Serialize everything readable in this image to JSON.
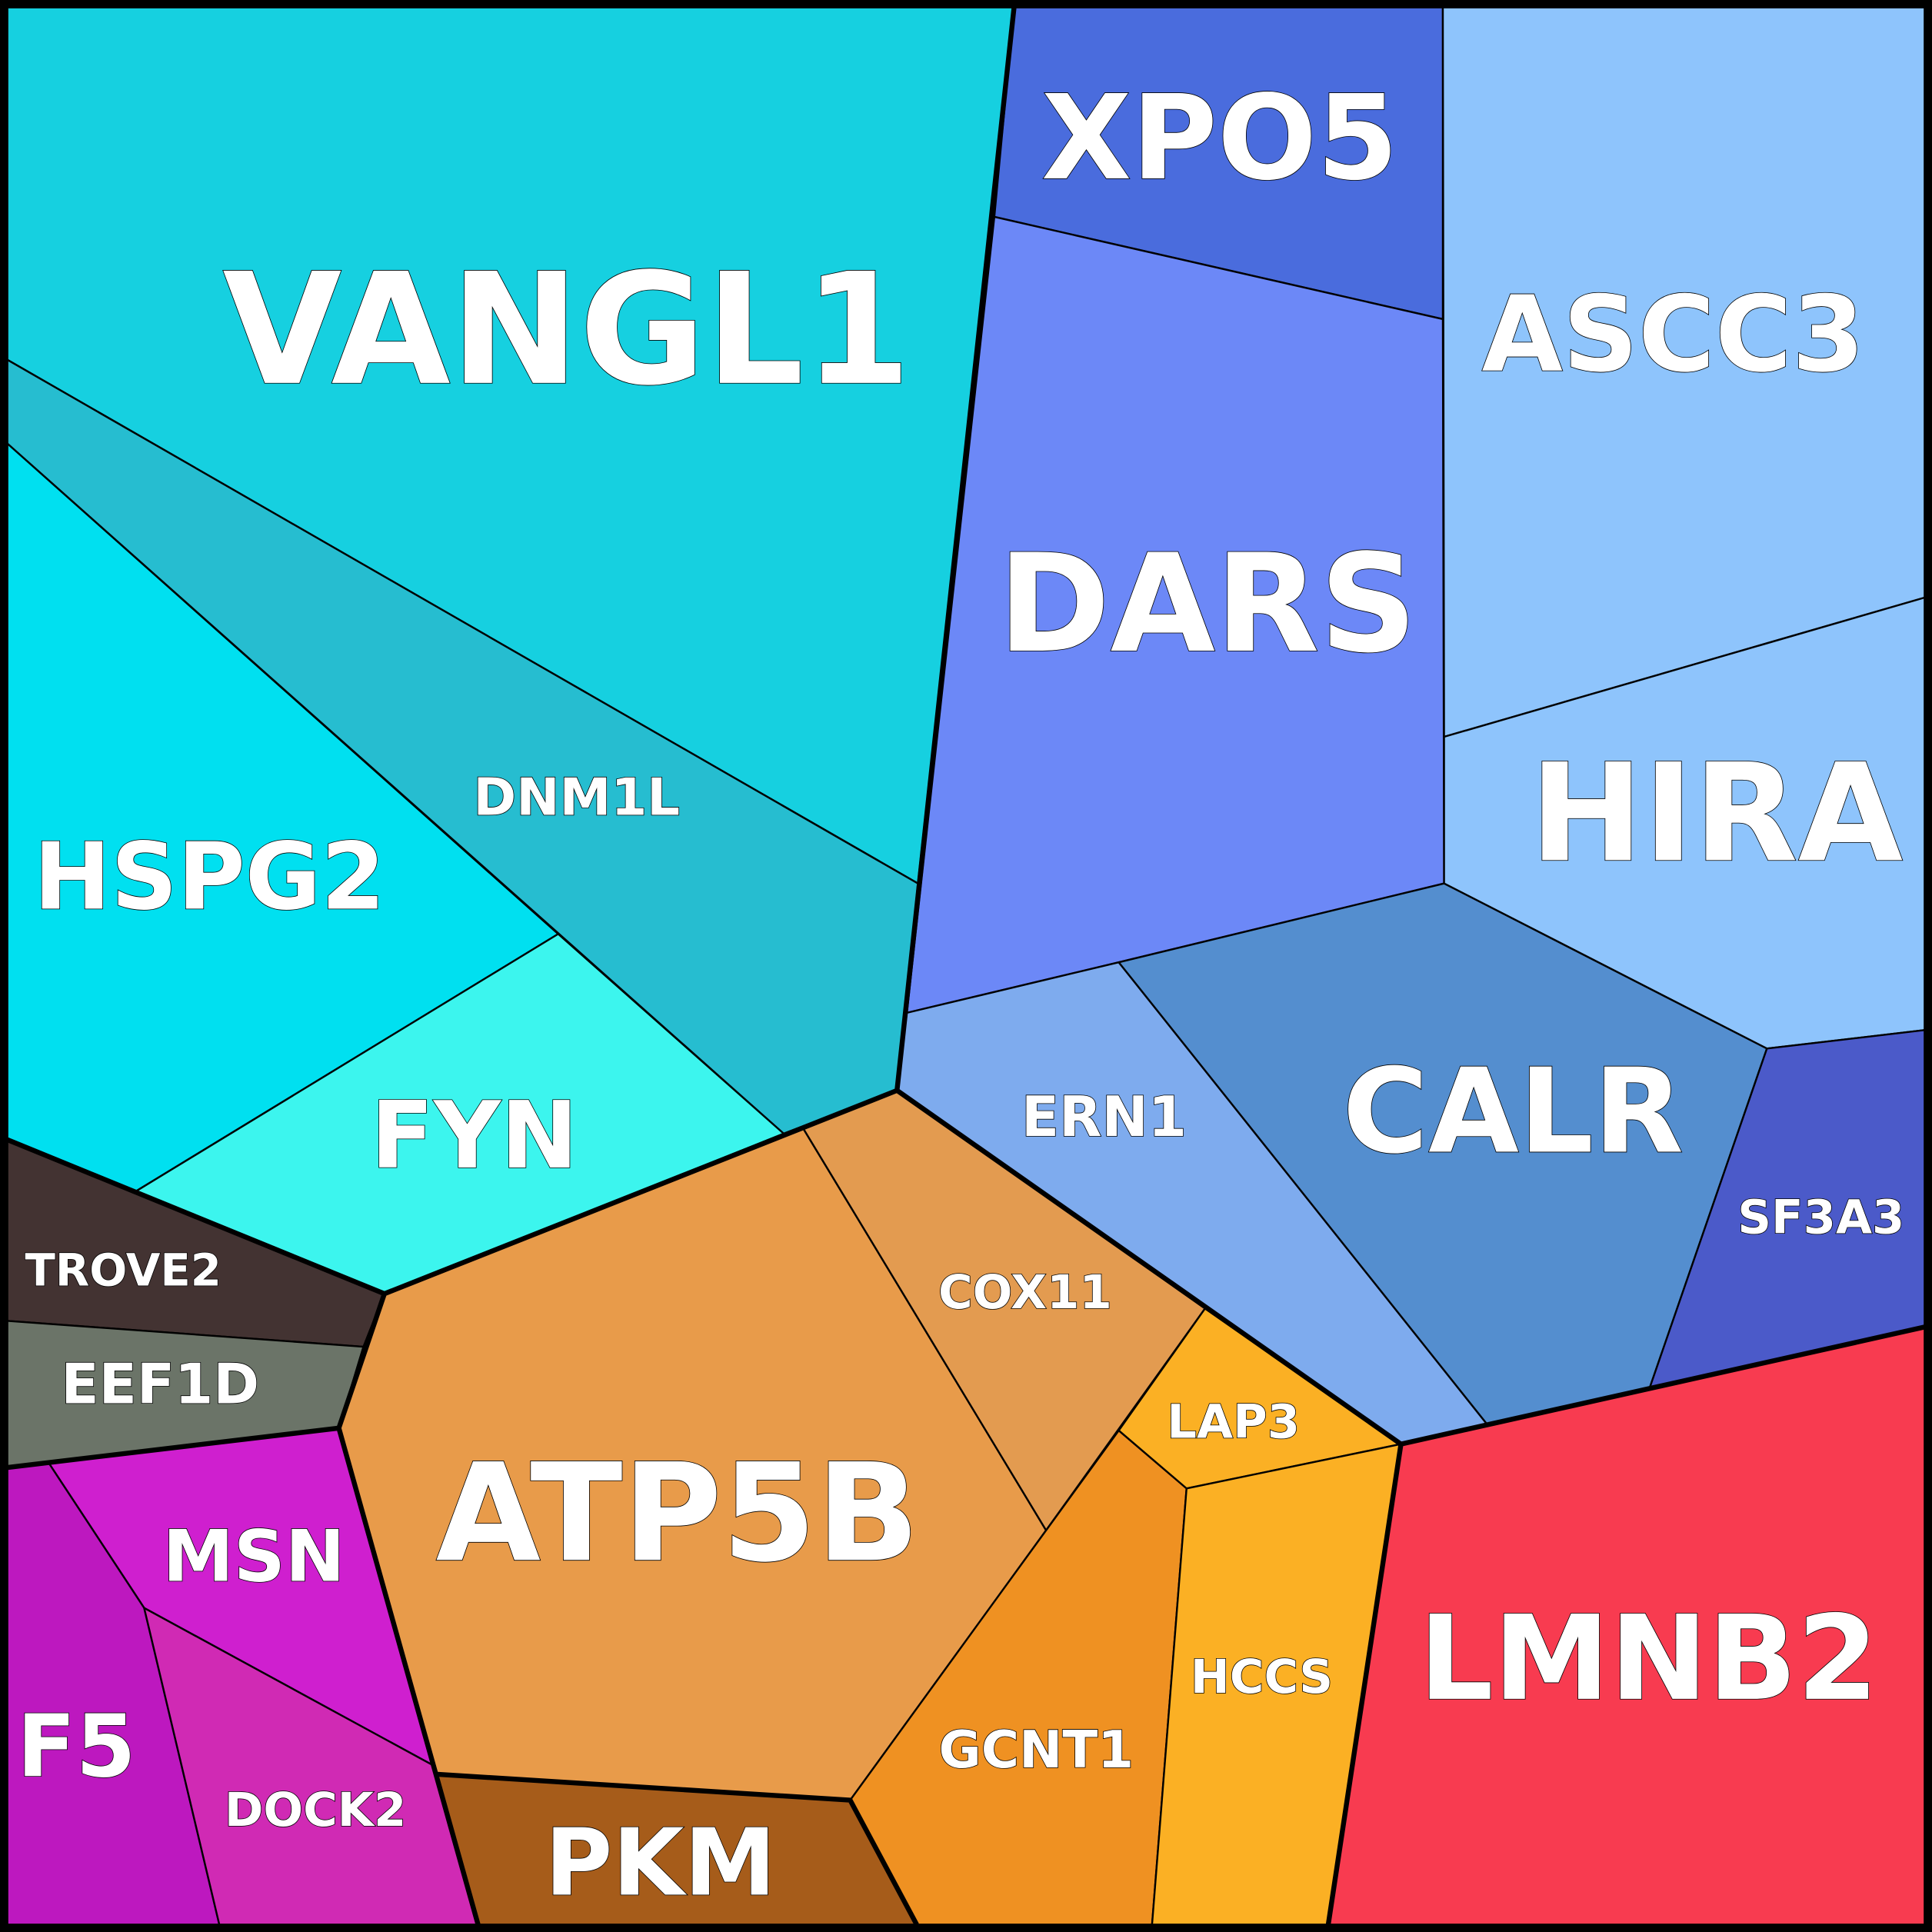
{
  "nodes": [
    {
      "label": "VANGL1"
    },
    {
      "label": "DNM1L"
    },
    {
      "label": "HSPG2"
    },
    {
      "label": "FYN"
    },
    {
      "label": "TROVE2"
    },
    {
      "label": "EEF1D"
    },
    {
      "label": "MSN"
    },
    {
      "label": "F5"
    },
    {
      "label": "DOCK2"
    },
    {
      "label": "ATP5B"
    },
    {
      "label": "COX11"
    },
    {
      "label": "PKM"
    },
    {
      "label": "GCNT1"
    },
    {
      "label": "LAP3"
    },
    {
      "label": "HCCS"
    },
    {
      "label": "XPO5"
    },
    {
      "label": "DARS"
    },
    {
      "label": "ASCC3"
    },
    {
      "label": "HIRA"
    },
    {
      "label": "ERN1"
    },
    {
      "label": "CALR"
    },
    {
      "label": "SF3A3"
    },
    {
      "label": "LMNB2"
    }
  ]
}
